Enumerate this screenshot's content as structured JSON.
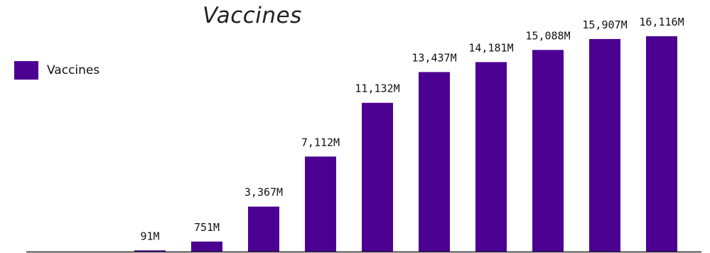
{
  "chart_data": {
    "type": "bar",
    "title": "Vaccines",
    "xlabel": "",
    "ylabel": "",
    "legend_position": "top-left",
    "grid": false,
    "categories": [
      "",
      "",
      "",
      "",
      "",
      "",
      "",
      "",
      "",
      "",
      "",
      ""
    ],
    "series": [
      {
        "name": "Vaccines",
        "color": "#4b0092",
        "values": [
          0,
          0,
          91,
          751,
          3367,
          7112,
          11132,
          13437,
          14181,
          15088,
          15907,
          16116
        ]
      }
    ],
    "data_labels": [
      "",
      "",
      "91M",
      "751M",
      "3,367M",
      "7,112M",
      "11,132M",
      "13,437M",
      "14,181M",
      "15,088M",
      "15,907M",
      "16,116M"
    ],
    "ylim": [
      0,
      16116
    ]
  }
}
